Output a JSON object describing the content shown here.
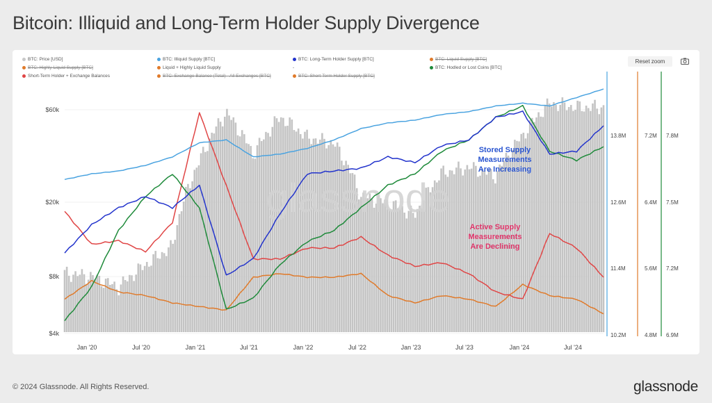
{
  "title": "Bitcoin: Illiquid and Long-Term Holder Supply Divergence",
  "footer": {
    "copyright": "© 2024 Glassnode. All Rights Reserved.",
    "logo": "glassnode"
  },
  "toolbar": {
    "reset_zoom": "Reset zoom",
    "camera_icon": "camera-icon"
  },
  "watermark": "glassnode",
  "legend": [
    {
      "label": "BTC: Price [USD]",
      "color": "#c8c8c8",
      "struck": false
    },
    {
      "label": "BTC: Illiquid Supply [BTC]",
      "color": "#4aa3e0",
      "struck": false
    },
    {
      "label": "BTC: Long-Term Holder Supply [BTC]",
      "color": "#2233cc",
      "struck": false
    },
    {
      "label": "BTC: Liquid Supply [BTC]",
      "color": "#e07a2a",
      "struck": true
    },
    {
      "label": "BTC: Highly Liquid Supply [BTC]",
      "color": "#e07a2a",
      "struck": true
    },
    {
      "label": "Liquid + Highly Liquid Supply",
      "color": "#e07a2a",
      "struck": false
    },
    {
      "label": "-",
      "color": "",
      "struck": false
    },
    {
      "label": "BTC: Hodled or Lost Coins [BTC]",
      "color": "#1e8a3a",
      "struck": false
    },
    {
      "label": "Short-Term Holder + Exchange Balances",
      "color": "#e04545",
      "struck": false
    },
    {
      "label": "BTC: Exchange Balance (Total) - All Exchanges [BTC]",
      "color": "#e07a2a",
      "struck": true
    },
    {
      "label": "BTC: Short-Term Holder Supply [BTC]",
      "color": "#e07a2a",
      "struck": true
    }
  ],
  "annotations": {
    "stored": [
      "Stored Supply",
      "Measurements",
      "Are Increasing"
    ],
    "active": [
      "Active Supply",
      "Measurements",
      "Are Declining"
    ]
  },
  "colors": {
    "price": "#c4c4c4",
    "illiquid": "#4aa3e0",
    "lth": "#2233cc",
    "liquid": "#e07a2a",
    "hodled": "#1e8a3a",
    "sth": "#e04545",
    "stored_text": "#2a55d0",
    "active_text": "#e0356a"
  },
  "chart_data": {
    "type": "line",
    "x_ticks": [
      "Jan '20",
      "Jul '20",
      "Jan '21",
      "Jul '21",
      "Jan '22",
      "Jul '22",
      "Jan '23",
      "Jul '23",
      "Jan '24",
      "Jul '24"
    ],
    "x_range": [
      "2019-10",
      "2024-10"
    ],
    "axes": {
      "price": {
        "ticks": [
          "$60k",
          "$20k",
          "$8k",
          "$4k"
        ],
        "log": true
      },
      "illiquid": {
        "ticks": [
          "13.8M",
          "12.6M",
          "11.4M",
          "10.2M"
        ],
        "range": [
          10.2,
          14.6
        ],
        "unit": "M"
      },
      "liquid": {
        "ticks": [
          "7.2M",
          "6.4M",
          "5.6M",
          "4.8M"
        ],
        "range": [
          4.8,
          8.2
        ],
        "unit": "M"
      },
      "hodled": {
        "ticks": [
          "7.8M",
          "7.5M",
          "7.2M",
          "6.9M"
        ],
        "range": [
          6.9,
          8.0
        ],
        "unit": "M"
      }
    },
    "x": [
      "2019-10",
      "2020-01",
      "2020-04",
      "2020-07",
      "2020-10",
      "2021-01",
      "2021-04",
      "2021-07",
      "2021-10",
      "2022-01",
      "2022-04",
      "2022-07",
      "2022-10",
      "2023-01",
      "2023-04",
      "2023-07",
      "2023-10",
      "2024-01",
      "2024-04",
      "2024-07",
      "2024-10"
    ],
    "series": [
      {
        "name": "BTC: Price [USD]",
        "key": "price",
        "values": [
          8300,
          8000,
          7000,
          9200,
          11400,
          32000,
          58000,
          35000,
          55000,
          43000,
          40000,
          21000,
          19500,
          16800,
          28000,
          30000,
          27000,
          44000,
          65000,
          62000,
          62000
        ]
      },
      {
        "name": "BTC: Illiquid Supply [BTC]",
        "key": "illiquid",
        "values": [
          12.9,
          13.0,
          13.05,
          13.15,
          13.3,
          13.55,
          13.6,
          13.3,
          13.35,
          13.45,
          13.6,
          13.8,
          13.9,
          13.95,
          14.05,
          14.1,
          14.2,
          14.25,
          14.2,
          14.35,
          14.5
        ]
      },
      {
        "name": "BTC: Long-Term Holder Supply [BTC]",
        "key": "lth",
        "values": [
          11.6,
          12.1,
          12.4,
          12.6,
          12.4,
          12.8,
          11.2,
          11.5,
          12.3,
          13.0,
          13.05,
          13.1,
          13.3,
          13.2,
          13.5,
          13.6,
          14.0,
          14.1,
          13.35,
          13.4,
          13.85
        ]
      },
      {
        "name": "Liquid + Highly Liquid Supply",
        "key": "liquid",
        "values": [
          5.25,
          5.5,
          5.35,
          5.3,
          5.2,
          5.15,
          5.1,
          5.55,
          5.6,
          5.55,
          5.55,
          5.6,
          5.3,
          5.2,
          5.3,
          5.25,
          5.15,
          5.45,
          5.3,
          5.25,
          5.05
        ]
      },
      {
        "name": "BTC: Hodled or Lost Coins [BTC]",
        "key": "hodled",
        "values": [
          6.95,
          7.1,
          7.35,
          7.5,
          7.6,
          7.45,
          7.0,
          7.05,
          7.2,
          7.3,
          7.35,
          7.45,
          7.55,
          7.6,
          7.7,
          7.75,
          7.85,
          7.9,
          7.7,
          7.66,
          7.72
        ]
      },
      {
        "name": "Short-Term Holder + Exchange Balances",
        "key": "sth",
        "values": [
          6.45,
          6.0,
          6.05,
          5.9,
          6.3,
          7.8,
          6.8,
          5.8,
          5.8,
          5.95,
          5.95,
          6.1,
          5.85,
          5.7,
          5.75,
          5.6,
          5.35,
          5.25,
          6.15,
          5.95,
          5.55
        ]
      }
    ]
  }
}
